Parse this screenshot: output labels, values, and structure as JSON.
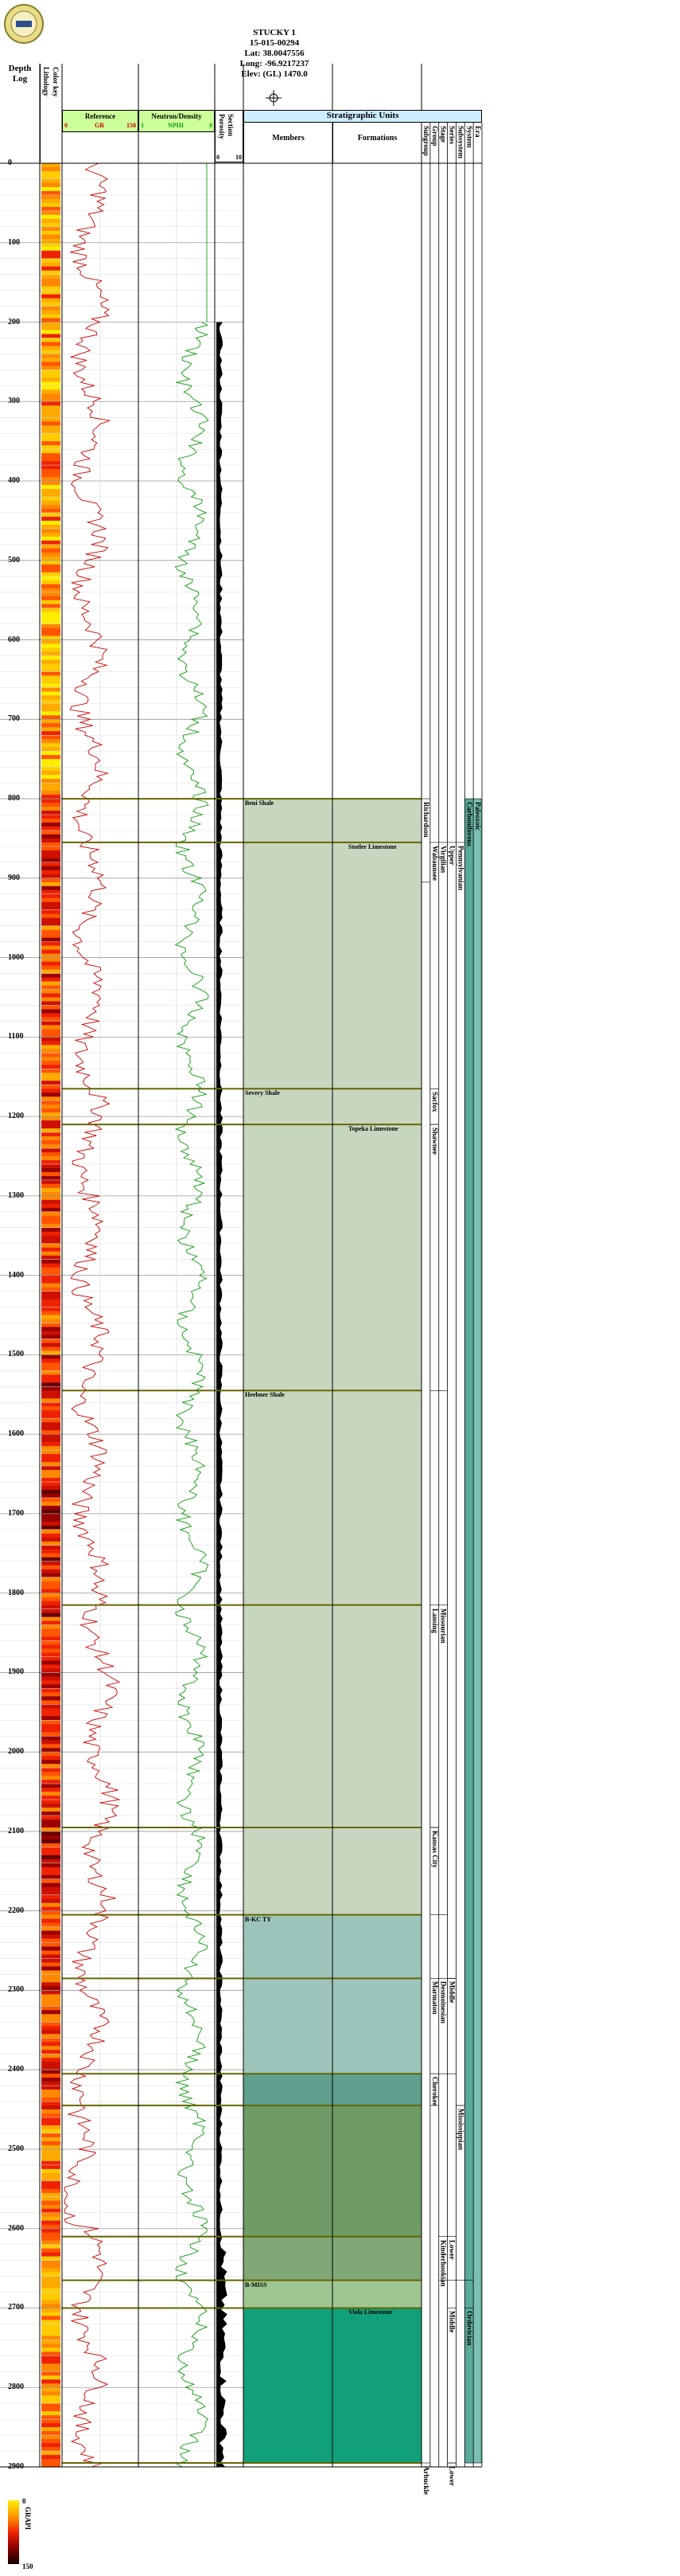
{
  "well": {
    "name": "STUCKY 1",
    "api": "15-015-00294",
    "lat": "Lat: 38.0047556",
    "long": "Long: -96.9217237",
    "elev": "Elev: (GL) 1470.0"
  },
  "tracks": {
    "depth_header": "Depth",
    "depth_header2": "Log",
    "lithology": "Lithology",
    "color_key": "Color key",
    "gr_track": "Reference",
    "gr_curve": "GR",
    "gr_min": "0",
    "gr_max": "150",
    "neutron_track": "Neutron/Density",
    "nphi_curve": "NPHI",
    "nphi_left": "1",
    "nphi_right": "0",
    "porosity": "Porosity",
    "section": "Section",
    "por_min": "0",
    "por_max": "10",
    "strat_header": "Stratigraphic Units",
    "members": "Members",
    "formations": "Formations",
    "col_headers": [
      "Subgroup",
      "Group",
      "Stage",
      "Series",
      "Subsystem",
      "System",
      "Era"
    ]
  },
  "depths": [
    0,
    100,
    200,
    300,
    400,
    500,
    600,
    700,
    800,
    900,
    1000,
    1100,
    1200,
    1300,
    1400,
    1500,
    1600,
    1700,
    1800,
    1900,
    2000,
    2100,
    2200,
    2300,
    2400,
    2500,
    2600,
    2700,
    2800,
    2900
  ],
  "depth_range": [
    0,
    2900
  ],
  "tops": [
    {
      "depth": 800,
      "label": "Beni Shale"
    },
    {
      "depth": 855,
      "label": "Stotler Limestone"
    },
    {
      "depth": 1165,
      "label": "Severy Shale"
    },
    {
      "depth": 1210,
      "label": "Topeka Limestone"
    },
    {
      "depth": 1545,
      "label": "Heebner Shale"
    },
    {
      "depth": 1815,
      "label": ""
    },
    {
      "depth": 2095,
      "label": ""
    },
    {
      "depth": 2205,
      "label": "B-KC TY"
    },
    {
      "depth": 2285,
      "label": ""
    },
    {
      "depth": 2405,
      "label": ""
    },
    {
      "depth": 2445,
      "label": ""
    },
    {
      "depth": 2610,
      "label": ""
    },
    {
      "depth": 2665,
      "label": "B-MISS"
    },
    {
      "depth": 2700,
      "label": "Viola Limestone"
    },
    {
      "depth": 2895,
      "label": ""
    }
  ],
  "units": [
    {
      "label": "Richardson",
      "col": 0,
      "from": 800,
      "to": 905
    },
    {
      "label": "Wabaunsee",
      "col": 1,
      "from": 855,
      "to": 1165
    },
    {
      "label": "Sacfox",
      "col": 1,
      "from": 1165,
      "to": 1210
    },
    {
      "label": "Virgilian",
      "col": 2,
      "from": 855,
      "to": 1545
    },
    {
      "label": "Shawnee",
      "col": 1,
      "from": 1210,
      "to": 1545
    },
    {
      "label": "Upper",
      "col": 3,
      "from": 855,
      "to": 2285
    },
    {
      "label": "Pennsylvanian",
      "col": 4,
      "from": 855,
      "to": 2445
    },
    {
      "label": "Carboniferous",
      "col": 5,
      "from": 800,
      "to": 2665
    },
    {
      "label": "Paleozoic",
      "col": 6,
      "from": 800,
      "to": 2895
    },
    {
      "label": "Lansing",
      "col": 1,
      "from": 1815,
      "to": 2095
    },
    {
      "label": "Missourian",
      "col": 2,
      "from": 1815,
      "to": 2205
    },
    {
      "label": "Kansas City",
      "col": 1,
      "from": 2095,
      "to": 2205
    },
    {
      "label": "Middle",
      "col": 3,
      "from": 2285,
      "to": 2405
    },
    {
      "label": "Desmoinesian",
      "col": 2,
      "from": 2285,
      "to": 2405
    },
    {
      "label": "Marmaton",
      "col": 1,
      "from": 2285,
      "to": 2405
    },
    {
      "label": "Cherokee",
      "col": 1,
      "from": 2405,
      "to": 2445
    },
    {
      "label": "Mississippian",
      "col": 4,
      "from": 2445,
      "to": 2665
    },
    {
      "label": "Lower",
      "col": 3,
      "from": 2610,
      "to": 2665
    },
    {
      "label": "Kinderhookian",
      "col": 2,
      "from": 2610,
      "to": 2665
    },
    {
      "label": "Middle",
      "col": 3,
      "from": 2700,
      "to": 2895
    },
    {
      "label": "Ordovician",
      "col": 5,
      "from": 2700,
      "to": 2895
    },
    {
      "label": "Arbuckle",
      "col": 0,
      "from": 2895,
      "to": 2900
    },
    {
      "label": "Lower",
      "col": 3,
      "from": 2895,
      "to": 2900
    }
  ],
  "strat_fills": [
    {
      "from": 800,
      "to": 2205,
      "color": "#c6d6bf"
    },
    {
      "from": 2205,
      "to": 2405,
      "color": "#9dc4bb"
    },
    {
      "from": 2405,
      "to": 2445,
      "color": "#5e9f8e"
    },
    {
      "from": 2445,
      "to": 2610,
      "color": "#6e9b66"
    },
    {
      "from": 2610,
      "to": 2665,
      "color": "#7fa876"
    },
    {
      "from": 2665,
      "to": 2700,
      "color": "#9ec690"
    },
    {
      "from": 2700,
      "to": 2895,
      "color": "#12a07a"
    }
  ],
  "era_fill": {
    "from": 800,
    "to": 2895,
    "color": "#5aa999"
  },
  "legend": {
    "label": "GRAPI",
    "min": "0",
    "max": "150"
  },
  "colors": {
    "gr": "#cc0000",
    "nphi": "#119911",
    "track_header": "#ccff99",
    "strat_header": "#cceeff",
    "top_line": "#666600"
  }
}
